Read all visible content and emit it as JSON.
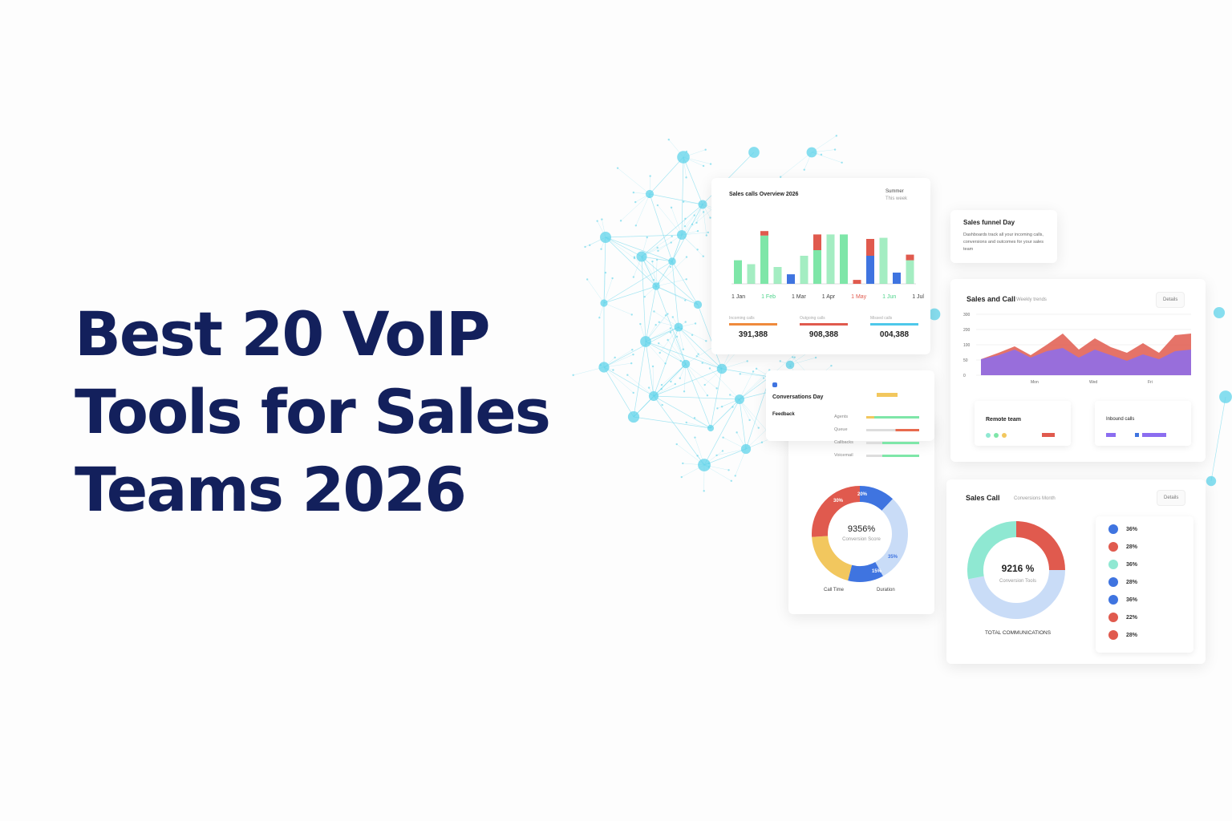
{
  "headline": {
    "line1": "Best 20 VoIP",
    "line2": "Tools for Sales",
    "line3": "Teams 2026"
  },
  "colors": {
    "title": "#13205c",
    "green": "#7ee6a8",
    "red": "#e05a4e",
    "blue": "#3f74e0",
    "purple": "#8b6df0",
    "teal": "#8fe8d2",
    "lightblue": "#c9dcf7",
    "yellow": "#f2c75e",
    "network": "#5fd3ea"
  },
  "bar_card": {
    "title": "Sales calls  Overview 2026",
    "corner": "Summer",
    "corner_sub": "This week",
    "x_labels": [
      "1 Jan",
      "1 Feb",
      "1 Mar",
      "1 Apr",
      "1 May",
      "1 Jun",
      "1 Jul"
    ],
    "stats": [
      {
        "label": "Incoming calls",
        "value": "391,388"
      },
      {
        "label": "Outgoing calls",
        "value": "908,388"
      },
      {
        "label": "Missed calls",
        "value": "004,388"
      }
    ]
  },
  "note_card": {
    "title": "Sales funnel Day",
    "text": "Dashboards track all your incoming calls, conversions and outcomes for your sales team"
  },
  "area_card": {
    "title": "Sales and Call",
    "subtitle": "Weekly trends",
    "button": "Details",
    "y_labels": [
      "300",
      "200",
      "100",
      "50",
      "0"
    ],
    "x_labels": [
      "Mon",
      "Wed",
      "Fri"
    ],
    "mini1": {
      "title": "Remote team"
    },
    "mini2": {
      "title": "Inbound calls"
    }
  },
  "list_card": {
    "title": "Conversations Day",
    "sub": "Feedback",
    "rows": [
      "Agents",
      "Queue",
      "Callbacks",
      "Voicemail"
    ]
  },
  "donut_card": {
    "center_value": "9356%",
    "center_label": "Conversion Score",
    "labels": [
      "Call Time",
      "Duration"
    ],
    "segments": [
      "20%",
      "35%",
      "15%",
      "30%"
    ]
  },
  "call_card": {
    "title": "Sales Call",
    "subtitle": "Conversions  Month",
    "button": "Details",
    "center_value": "9216 %",
    "center_label": "Conversion Tools",
    "footer": "TOTAL COMMUNICATIONS",
    "legend": [
      {
        "value": "36%",
        "color": "#3f74e0"
      },
      {
        "value": "28%",
        "color": "#e05a4e"
      },
      {
        "value": "36%",
        "color": "#8fe8d2"
      },
      {
        "value": "28%",
        "color": "#3f74e0"
      },
      {
        "value": "36%",
        "color": "#3f74e0"
      },
      {
        "value": "22%",
        "color": "#e05a4e"
      },
      {
        "value": "28%",
        "color": "#e05a4e"
      }
    ]
  }
}
